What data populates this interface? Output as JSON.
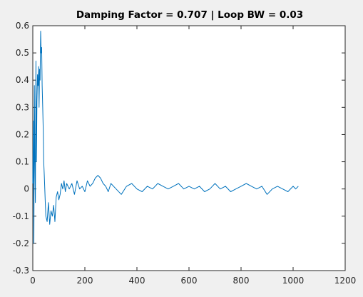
{
  "figure": {
    "background": "#f0f0f0",
    "axes_background": "#ffffff",
    "axes_color": "#262626",
    "series_color": "#0072bd"
  },
  "chart_data": {
    "type": "line",
    "title": "Damping Factor = 0.707 | Loop BW = 0.03",
    "xlabel": "",
    "ylabel": "",
    "xlim": [
      0,
      1200
    ],
    "ylim": [
      -0.3,
      0.6
    ],
    "xticks": [
      0,
      200,
      400,
      600,
      800,
      1000,
      1200
    ],
    "xtick_labels": [
      "0",
      "200",
      "400",
      "600",
      "800",
      "1000",
      "1200"
    ],
    "yticks": [
      -0.3,
      -0.2,
      -0.1,
      0,
      0.1,
      0.2,
      0.3,
      0.4,
      0.5,
      0.6
    ],
    "ytick_labels": [
      "-0.3",
      "-0.2",
      "-0.1",
      "0",
      "0.1",
      "0.2",
      "0.3",
      "0.4",
      "0.5",
      "0.6"
    ],
    "grid": false,
    "legend": "none",
    "series": [
      {
        "x": [
          0,
          2,
          4,
          6,
          8,
          10,
          12,
          14,
          16,
          18,
          20,
          22,
          24,
          26,
          28,
          30,
          32,
          34,
          36,
          38,
          40,
          42,
          44,
          46,
          48,
          50,
          55,
          60,
          65,
          70,
          75,
          80,
          85,
          90,
          95,
          100,
          105,
          110,
          115,
          120,
          125,
          130,
          140,
          150,
          160,
          170,
          180,
          190,
          200,
          210,
          220,
          230,
          240,
          250,
          260,
          270,
          280,
          290,
          300,
          320,
          340,
          360,
          380,
          400,
          420,
          440,
          460,
          480,
          500,
          520,
          540,
          560,
          580,
          600,
          620,
          640,
          660,
          680,
          700,
          720,
          740,
          760,
          780,
          800,
          820,
          840,
          860,
          880,
          900,
          920,
          940,
          960,
          980,
          1000,
          1010,
          1020
        ],
        "y": [
          0.02,
          0.25,
          -0.2,
          0.38,
          0.1,
          -0.05,
          0.47,
          0.1,
          0.32,
          0.42,
          0.38,
          0.45,
          0.3,
          0.44,
          0.4,
          0.58,
          0.5,
          0.52,
          0.38,
          0.3,
          0.22,
          0.1,
          0.05,
          0.0,
          -0.05,
          -0.1,
          -0.12,
          -0.05,
          -0.13,
          -0.08,
          -0.1,
          -0.06,
          -0.12,
          -0.03,
          -0.01,
          -0.04,
          -0.02,
          0.02,
          0.0,
          0.03,
          -0.01,
          0.02,
          0.0,
          0.02,
          -0.02,
          0.03,
          0.0,
          0.01,
          -0.01,
          0.03,
          0.01,
          0.02,
          0.04,
          0.05,
          0.04,
          0.02,
          0.01,
          -0.01,
          0.02,
          0.0,
          -0.02,
          0.01,
          0.02,
          0.0,
          -0.01,
          0.01,
          0.0,
          0.02,
          0.01,
          0.0,
          0.01,
          0.02,
          0.0,
          0.01,
          0.0,
          0.01,
          -0.01,
          0.0,
          0.02,
          0.0,
          0.01,
          -0.01,
          0.0,
          0.01,
          0.02,
          0.01,
          0.0,
          0.01,
          -0.02,
          0.0,
          0.01,
          0.0,
          -0.01,
          0.01,
          0.0,
          0.01
        ]
      }
    ]
  }
}
